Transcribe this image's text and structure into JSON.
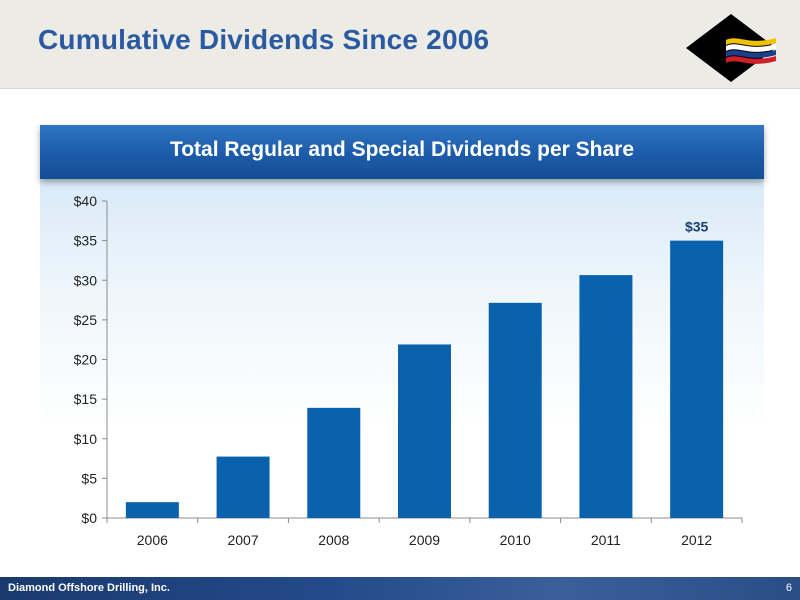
{
  "slide": {
    "title": "Cumulative Dividends Since 2006",
    "footer_company": "Diamond Offshore Drilling, Inc.",
    "page_number": "6"
  },
  "logo": {
    "icon": "diamond-flag-logo-icon",
    "colors": [
      "#000000",
      "#f2c200",
      "#1b3f8b",
      "#d01f2b"
    ]
  },
  "chart_data": {
    "type": "bar",
    "title": "Total Regular and Special Dividends per Share",
    "categories": [
      "2006",
      "2007",
      "2008",
      "2009",
      "2010",
      "2011",
      "2012"
    ],
    "values": [
      2,
      7.75,
      13.9,
      21.9,
      27.15,
      30.65,
      35
    ],
    "data_labels": [
      null,
      null,
      null,
      null,
      null,
      null,
      "$35"
    ],
    "y_ticks": [
      "$0",
      "$5",
      "$10",
      "$15",
      "$20",
      "$25",
      "$30",
      "$35",
      "$40"
    ],
    "y_tick_values": [
      0,
      5,
      10,
      15,
      20,
      25,
      30,
      35,
      40
    ],
    "ylim": [
      0,
      40
    ],
    "xlabel": "",
    "ylabel": "",
    "grid": false,
    "bar_color": "#0a62ad"
  }
}
